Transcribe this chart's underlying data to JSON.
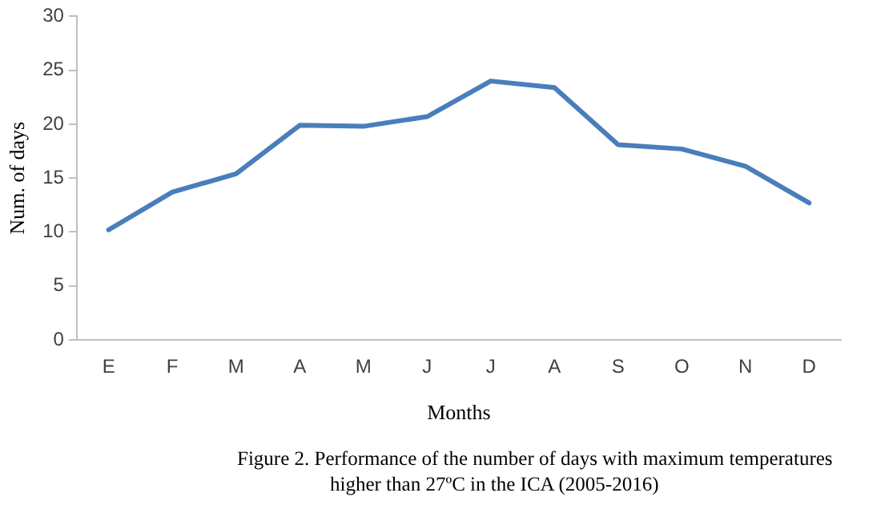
{
  "chart_data": {
    "type": "line",
    "xlabel": "Months",
    "ylabel": "Num. of days",
    "categories": [
      "E",
      "F",
      "M",
      "A",
      "M",
      "J",
      "J",
      "A",
      "S",
      "O",
      "N",
      "D"
    ],
    "series": [
      {
        "color": "#4a7ebb",
        "values": [
          10.2,
          13.7,
          15.4,
          19.9,
          19.8,
          20.7,
          24.0,
          23.4,
          18.1,
          17.7,
          16.1,
          12.7
        ]
      }
    ],
    "ylim": [
      0,
      30
    ],
    "yticks": [
      0,
      5,
      10,
      15,
      20,
      25,
      30
    ],
    "grid": false,
    "legend": false,
    "marker": "none",
    "line_style": "solid",
    "annotations": [
      "Figure 2. Performance of the number of days with maximum temperatures higher than 27ºC in the ICA (2005-2016)"
    ]
  }
}
